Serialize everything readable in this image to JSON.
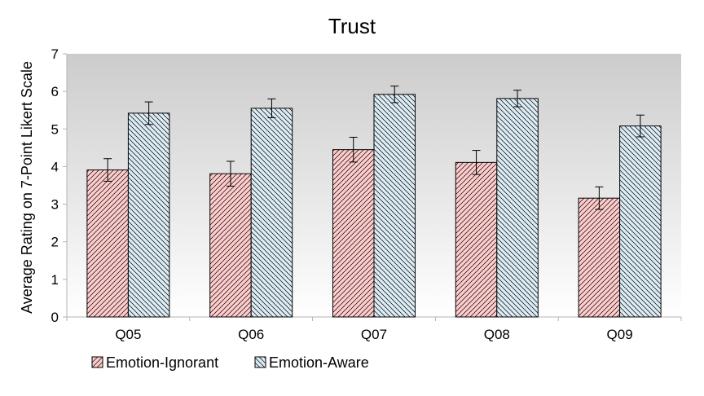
{
  "chart_data": {
    "type": "bar",
    "title": "Trust",
    "xlabel": "",
    "ylabel": "Average Rating on 7-Point Likert Scale",
    "ylim": [
      0,
      7
    ],
    "yticks": [
      0,
      1,
      2,
      3,
      4,
      5,
      6,
      7
    ],
    "grid": false,
    "legend_position": "bottom-left",
    "categories": [
      "Q05",
      "Q06",
      "Q07",
      "Q08",
      "Q09"
    ],
    "series": [
      {
        "name": "Emotion-Ignorant",
        "values": [
          3.91,
          3.81,
          4.45,
          4.11,
          3.16
        ],
        "error": [
          0.3,
          0.33,
          0.33,
          0.32,
          0.3
        ],
        "color": "#ffcccc",
        "hatch": "forward"
      },
      {
        "name": "Emotion-Aware",
        "values": [
          5.42,
          5.55,
          5.92,
          5.81,
          5.08
        ],
        "error": [
          0.3,
          0.25,
          0.22,
          0.22,
          0.29
        ],
        "color": "#dcecf5",
        "hatch": "backward"
      }
    ]
  }
}
